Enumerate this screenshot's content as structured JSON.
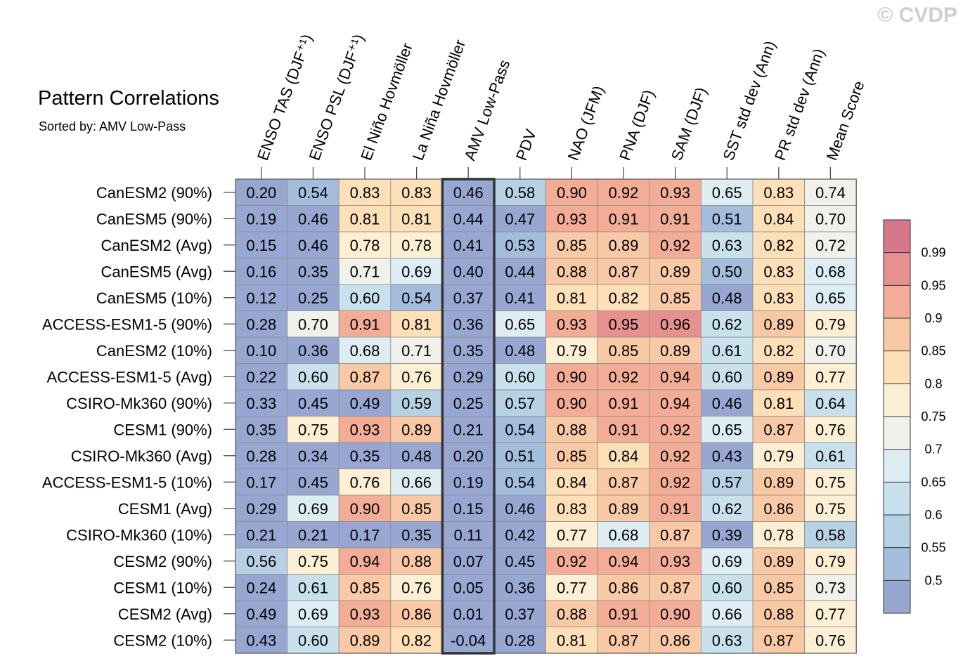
{
  "title": "Pattern Correlations",
  "subtitle": "Sorted by: AMV Low-Pass",
  "watermark": "© CVDP",
  "chart_data": {
    "type": "heatmap",
    "title": "Pattern Correlations",
    "subtitle": "Sorted by: AMV Low-Pass",
    "columns": [
      "ENSO TAS (DJF⁺¹)",
      "ENSO PSL (DJF⁺¹)",
      "El Niño Hovmöller",
      "La Niña Hovmöller",
      "AMV Low-Pass",
      "PDV",
      "NAO (JFM)",
      "PNA (DJF)",
      "SAM (DJF)",
      "SST std dev (Ann)",
      "PR std dev (Ann)",
      "Mean Score"
    ],
    "highlighted_column": "AMV Low-Pass",
    "rows": [
      "CanESM2 (90%)",
      "CanESM5 (90%)",
      "CanESM2 (Avg)",
      "CanESM5 (Avg)",
      "CanESM5 (10%)",
      "ACCESS-ESM1-5 (90%)",
      "CanESM2 (10%)",
      "ACCESS-ESM1-5 (Avg)",
      "CSIRO-Mk360 (90%)",
      "CESM1 (90%)",
      "CSIRO-Mk360 (Avg)",
      "ACCESS-ESM1-5 (10%)",
      "CESM1 (Avg)",
      "CSIRO-Mk360 (10%)",
      "CESM2 (90%)",
      "CESM1 (10%)",
      "CESM2 (Avg)",
      "CESM2 (10%)"
    ],
    "values": [
      [
        "0.20",
        "0.54",
        "0.83",
        "0.83",
        "0.46",
        "0.58",
        "0.90",
        "0.92",
        "0.93",
        "0.65",
        "0.83",
        "0.74"
      ],
      [
        "0.19",
        "0.46",
        "0.81",
        "0.81",
        "0.44",
        "0.47",
        "0.93",
        "0.91",
        "0.91",
        "0.51",
        "0.84",
        "0.70"
      ],
      [
        "0.15",
        "0.46",
        "0.78",
        "0.78",
        "0.41",
        "0.53",
        "0.85",
        "0.89",
        "0.92",
        "0.63",
        "0.82",
        "0.72"
      ],
      [
        "0.16",
        "0.35",
        "0.71",
        "0.69",
        "0.40",
        "0.44",
        "0.88",
        "0.87",
        "0.89",
        "0.50",
        "0.83",
        "0.68"
      ],
      [
        "0.12",
        "0.25",
        "0.60",
        "0.54",
        "0.37",
        "0.41",
        "0.81",
        "0.82",
        "0.85",
        "0.48",
        "0.83",
        "0.65"
      ],
      [
        "0.28",
        "0.70",
        "0.91",
        "0.81",
        "0.36",
        "0.65",
        "0.93",
        "0.95",
        "0.96",
        "0.62",
        "0.89",
        "0.79"
      ],
      [
        "0.10",
        "0.36",
        "0.68",
        "0.71",
        "0.35",
        "0.48",
        "0.79",
        "0.85",
        "0.89",
        "0.61",
        "0.82",
        "0.70"
      ],
      [
        "0.22",
        "0.60",
        "0.87",
        "0.76",
        "0.29",
        "0.60",
        "0.90",
        "0.92",
        "0.94",
        "0.60",
        "0.89",
        "0.77"
      ],
      [
        "0.33",
        "0.45",
        "0.49",
        "0.59",
        "0.25",
        "0.57",
        "0.90",
        "0.91",
        "0.94",
        "0.46",
        "0.81",
        "0.64"
      ],
      [
        "0.35",
        "0.75",
        "0.93",
        "0.89",
        "0.21",
        "0.54",
        "0.88",
        "0.91",
        "0.92",
        "0.65",
        "0.87",
        "0.76"
      ],
      [
        "0.28",
        "0.34",
        "0.35",
        "0.48",
        "0.20",
        "0.51",
        "0.85",
        "0.84",
        "0.92",
        "0.43",
        "0.79",
        "0.61"
      ],
      [
        "0.17",
        "0.45",
        "0.76",
        "0.66",
        "0.19",
        "0.54",
        "0.84",
        "0.87",
        "0.92",
        "0.57",
        "0.89",
        "0.75"
      ],
      [
        "0.29",
        "0.69",
        "0.90",
        "0.85",
        "0.15",
        "0.46",
        "0.83",
        "0.89",
        "0.91",
        "0.62",
        "0.86",
        "0.75"
      ],
      [
        "0.21",
        "0.21",
        "0.17",
        "0.35",
        "0.11",
        "0.42",
        "0.77",
        "0.68",
        "0.87",
        "0.39",
        "0.78",
        "0.58"
      ],
      [
        "0.56",
        "0.75",
        "0.94",
        "0.88",
        "0.07",
        "0.45",
        "0.92",
        "0.94",
        "0.93",
        "0.69",
        "0.89",
        "0.79"
      ],
      [
        "0.24",
        "0.61",
        "0.85",
        "0.76",
        "0.05",
        "0.36",
        "0.77",
        "0.86",
        "0.87",
        "0.60",
        "0.85",
        "0.73"
      ],
      [
        "0.49",
        "0.69",
        "0.93",
        "0.86",
        "0.01",
        "0.37",
        "0.88",
        "0.91",
        "0.90",
        "0.66",
        "0.88",
        "0.77"
      ],
      [
        "0.43",
        "0.60",
        "0.89",
        "0.82",
        "-0.04",
        "0.28",
        "0.81",
        "0.87",
        "0.86",
        "0.63",
        "0.87",
        "0.76"
      ]
    ],
    "colorbar": {
      "levels": [
        "0.5",
        "0.55",
        "0.6",
        "0.65",
        "0.7",
        "0.75",
        "0.8",
        "0.85",
        "0.9",
        "0.95",
        "0.99"
      ],
      "colors": [
        "#97a7d2",
        "#a3bddd",
        "#b6d0e4",
        "#c9e1ec",
        "#ddedf3",
        "#f0f1ea",
        "#fcefd3",
        "#fddfb8",
        "#f9c9a5",
        "#f3ad97",
        "#e6908f",
        "#d6778c"
      ],
      "position": "right"
    }
  }
}
